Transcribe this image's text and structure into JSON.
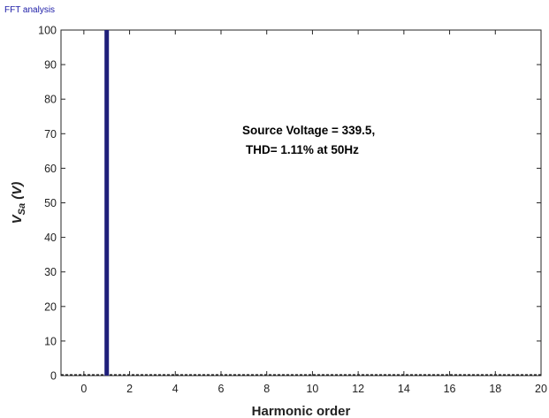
{
  "window": {
    "title": "FFT analysis"
  },
  "chart_data": {
    "type": "bar",
    "xlabel": "Harmonic order",
    "ylabel_main": "V",
    "ylabel_sub": "Sa",
    "ylabel_unit": " (V)",
    "xlim": [
      -1,
      20
    ],
    "ylim": [
      0,
      100
    ],
    "x_ticks": [
      0,
      2,
      4,
      6,
      8,
      10,
      12,
      14,
      16,
      18,
      20
    ],
    "y_ticks": [
      0,
      10,
      20,
      30,
      40,
      50,
      60,
      70,
      80,
      90,
      100
    ],
    "x": [
      1
    ],
    "values": [
      100
    ],
    "bar_color": "#1f1f7a",
    "baseline_style": "dashed",
    "grid": false,
    "annotation": {
      "line1": "Source Voltage = 339.5,",
      "line2": "THD= 1.11% at 50Hz"
    }
  }
}
